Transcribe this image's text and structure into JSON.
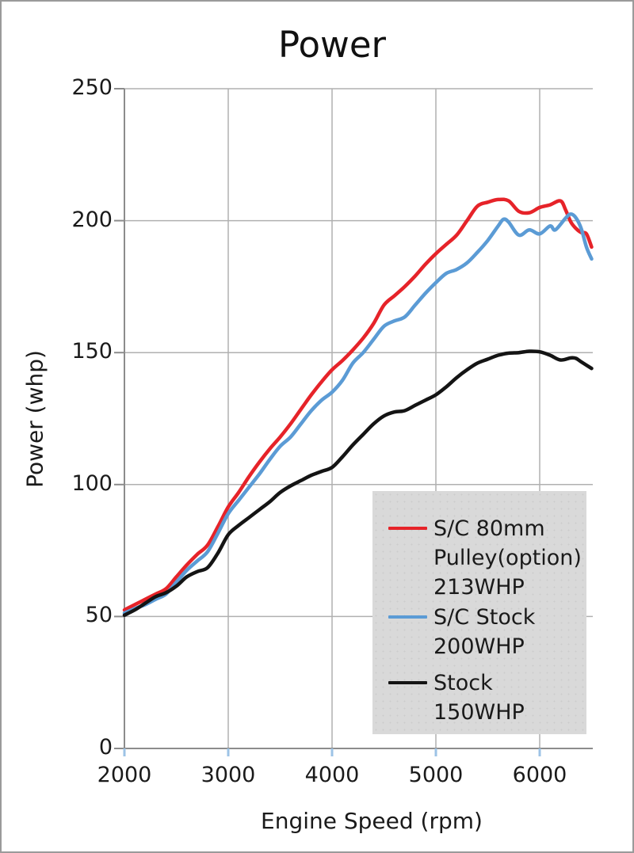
{
  "title": "Power",
  "axes": {
    "x": {
      "label": "Engine Speed (rpm)"
    },
    "y": {
      "label": "Power (whp)"
    }
  },
  "colors": {
    "red_series": "#e62329",
    "blue_series": "#5b9bd5",
    "black_series": "#141414",
    "gridline": "#b0b0b0",
    "axis_line": "#8c8c8c",
    "x_tick_mark": "#9dc3e6",
    "legend_background": "#d9d9d9",
    "text": "#1a1a1a"
  },
  "chart_data": {
    "type": "line",
    "title": "Power",
    "xlabel": "Engine Speed (rpm)",
    "ylabel": "Power (whp)",
    "xlim": [
      2000,
      6510
    ],
    "ylim": [
      0,
      250
    ],
    "x_ticks": [
      2000,
      3000,
      4000,
      5000,
      6000
    ],
    "y_ticks": [
      0,
      50,
      100,
      150,
      200,
      250
    ],
    "grid": true,
    "legend_position": "lower right box",
    "series": [
      {
        "name": "S/C 80mm Pulley(option) 213WHP",
        "label_lines": [
          "S/C 80mm",
          "Pulley(option)",
          "213WHP"
        ],
        "color": "#e62329",
        "points": [
          [
            2000,
            52.5
          ],
          [
            2100,
            54.5
          ],
          [
            2200,
            56.5
          ],
          [
            2300,
            58.5
          ],
          [
            2400,
            60.5
          ],
          [
            2500,
            65
          ],
          [
            2600,
            69.5
          ],
          [
            2700,
            73.5
          ],
          [
            2800,
            77
          ],
          [
            2900,
            84
          ],
          [
            3000,
            91.5
          ],
          [
            3100,
            97
          ],
          [
            3200,
            103
          ],
          [
            3300,
            108.5
          ],
          [
            3400,
            113.5
          ],
          [
            3500,
            118
          ],
          [
            3600,
            123
          ],
          [
            3700,
            128.5
          ],
          [
            3800,
            134
          ],
          [
            3900,
            139
          ],
          [
            4000,
            143.5
          ],
          [
            4100,
            147
          ],
          [
            4200,
            151
          ],
          [
            4300,
            155.5
          ],
          [
            4400,
            161
          ],
          [
            4500,
            168
          ],
          [
            4600,
            171.5
          ],
          [
            4700,
            175
          ],
          [
            4800,
            179
          ],
          [
            4900,
            183.5
          ],
          [
            5000,
            187.5
          ],
          [
            5100,
            191
          ],
          [
            5200,
            194.5
          ],
          [
            5300,
            200
          ],
          [
            5400,
            205.5
          ],
          [
            5500,
            207
          ],
          [
            5600,
            208
          ],
          [
            5700,
            207.5
          ],
          [
            5800,
            203.5
          ],
          [
            5900,
            203
          ],
          [
            6000,
            205
          ],
          [
            6100,
            206
          ],
          [
            6200,
            207.5
          ],
          [
            6250,
            204
          ],
          [
            6300,
            199.5
          ],
          [
            6350,
            197
          ],
          [
            6400,
            195.5
          ],
          [
            6450,
            195
          ],
          [
            6500,
            190
          ]
        ]
      },
      {
        "name": "S/C Stock 200WHP",
        "label_lines": [
          "S/C Stock",
          "200WHP"
        ],
        "color": "#5b9bd5",
        "points": [
          [
            2000,
            51.3
          ],
          [
            2100,
            53
          ],
          [
            2200,
            54.5
          ],
          [
            2300,
            56.5
          ],
          [
            2400,
            58.5
          ],
          [
            2500,
            63
          ],
          [
            2600,
            67.5
          ],
          [
            2700,
            71
          ],
          [
            2800,
            74.5
          ],
          [
            2900,
            81.5
          ],
          [
            3000,
            89
          ],
          [
            3100,
            94
          ],
          [
            3200,
            99
          ],
          [
            3300,
            104
          ],
          [
            3400,
            109.5
          ],
          [
            3500,
            114.5
          ],
          [
            3600,
            118
          ],
          [
            3700,
            123
          ],
          [
            3800,
            128
          ],
          [
            3900,
            132
          ],
          [
            4000,
            135
          ],
          [
            4100,
            139.5
          ],
          [
            4200,
            146
          ],
          [
            4300,
            150
          ],
          [
            4400,
            155
          ],
          [
            4500,
            160
          ],
          [
            4600,
            162
          ],
          [
            4700,
            163.5
          ],
          [
            4800,
            168
          ],
          [
            4900,
            172.5
          ],
          [
            5000,
            176.5
          ],
          [
            5100,
            180
          ],
          [
            5200,
            181.5
          ],
          [
            5300,
            184
          ],
          [
            5400,
            188
          ],
          [
            5500,
            192.5
          ],
          [
            5600,
            198
          ],
          [
            5650,
            200.5
          ],
          [
            5700,
            199.5
          ],
          [
            5800,
            194.5
          ],
          [
            5900,
            196.5
          ],
          [
            6000,
            195
          ],
          [
            6100,
            198
          ],
          [
            6150,
            196.5
          ],
          [
            6250,
            201
          ],
          [
            6300,
            202.5
          ],
          [
            6350,
            201
          ],
          [
            6400,
            197
          ],
          [
            6450,
            190
          ],
          [
            6500,
            185.5
          ]
        ]
      },
      {
        "name": "Stock 150WHP",
        "label_lines": [
          "Stock",
          "150WHP"
        ],
        "color": "#141414",
        "points": [
          [
            2000,
            50.5
          ],
          [
            2100,
            52.5
          ],
          [
            2200,
            55
          ],
          [
            2300,
            57.5
          ],
          [
            2400,
            59
          ],
          [
            2500,
            61.5
          ],
          [
            2600,
            65
          ],
          [
            2700,
            67
          ],
          [
            2800,
            68.5
          ],
          [
            2900,
            74
          ],
          [
            3000,
            81
          ],
          [
            3100,
            84.5
          ],
          [
            3200,
            87.5
          ],
          [
            3300,
            90.5
          ],
          [
            3400,
            93.5
          ],
          [
            3500,
            97
          ],
          [
            3600,
            99.5
          ],
          [
            3700,
            101.5
          ],
          [
            3800,
            103.5
          ],
          [
            3900,
            105
          ],
          [
            4000,
            106.5
          ],
          [
            4100,
            110.5
          ],
          [
            4200,
            115
          ],
          [
            4300,
            119
          ],
          [
            4400,
            123
          ],
          [
            4500,
            126
          ],
          [
            4600,
            127.5
          ],
          [
            4700,
            128
          ],
          [
            4800,
            130
          ],
          [
            4900,
            132
          ],
          [
            5000,
            134
          ],
          [
            5100,
            137
          ],
          [
            5200,
            140.5
          ],
          [
            5300,
            143.5
          ],
          [
            5400,
            146
          ],
          [
            5500,
            147.5
          ],
          [
            5600,
            149
          ],
          [
            5700,
            149.8
          ],
          [
            5800,
            150
          ],
          [
            5900,
            150.5
          ],
          [
            6000,
            150.3
          ],
          [
            6100,
            149
          ],
          [
            6200,
            147.2
          ],
          [
            6300,
            148
          ],
          [
            6350,
            147.8
          ],
          [
            6400,
            146.5
          ],
          [
            6500,
            144
          ]
        ]
      }
    ]
  }
}
